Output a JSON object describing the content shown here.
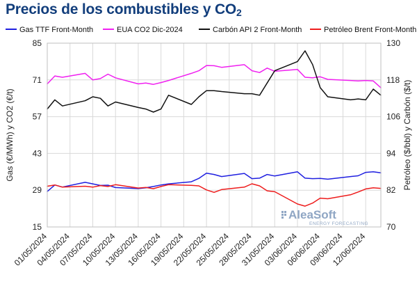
{
  "title": {
    "main": "Precios de los combustibles y CO",
    "sub": "2"
  },
  "watermark": {
    "brand": "AleaSoft",
    "tagline": "ENERGY FORECASTING"
  },
  "chart_data": {
    "type": "line",
    "grid": true,
    "legend_position": "top",
    "ylabel_left": "Gas (€/MWh) y CO2 (€/t)",
    "ylabel_right": "Petróleo ($/bbl) y Carbón ($/t)",
    "ylim_left": [
      15,
      85
    ],
    "yticks_left": [
      15,
      29,
      43,
      57,
      71,
      85
    ],
    "ylim_right": [
      70,
      130
    ],
    "yticks_right": [
      70,
      82,
      94,
      106,
      118,
      130
    ],
    "x": [
      "01/05/2024",
      "02/05/2024",
      "03/05/2024",
      "06/05/2024",
      "07/05/2024",
      "08/05/2024",
      "09/05/2024",
      "10/05/2024",
      "13/05/2024",
      "14/05/2024",
      "15/05/2024",
      "16/05/2024",
      "17/05/2024",
      "20/05/2024",
      "21/05/2024",
      "22/05/2024",
      "23/05/2024",
      "24/05/2024",
      "27/05/2024",
      "28/05/2024",
      "29/05/2024",
      "30/05/2024",
      "31/05/2024",
      "03/06/2024",
      "04/06/2024",
      "05/06/2024",
      "06/06/2024",
      "07/06/2024",
      "10/06/2024",
      "11/06/2024",
      "12/06/2024",
      "13/06/2024",
      "14/06/2024"
    ],
    "xtick_labels": [
      "01/05/2024",
      "04/05/2024",
      "07/05/2024",
      "10/05/2024",
      "13/05/2024",
      "16/05/2024",
      "19/05/2024",
      "22/05/2024",
      "25/05/2024",
      "28/05/2024",
      "31/05/2024",
      "03/06/2024",
      "06/06/2024",
      "09/06/2024",
      "12/06/2024"
    ],
    "series": [
      {
        "name": "Gas TTF Front-Month",
        "axis": "left",
        "color": "#1f1fe0",
        "values": [
          28.5,
          31.0,
          30.2,
          32.0,
          31.4,
          30.8,
          30.9,
          30.0,
          29.6,
          29.9,
          30.4,
          31.0,
          31.4,
          32.2,
          33.5,
          35.5,
          35.0,
          34.2,
          35.4,
          33.4,
          33.6,
          35.0,
          34.4,
          36.0,
          33.6,
          33.4,
          33.5,
          33.2,
          34.2,
          34.5,
          35.8,
          36.0,
          35.6
        ]
      },
      {
        "name": "EUA CO2 Dic-2024",
        "axis": "left",
        "color": "#f020f0",
        "values": [
          69.5,
          72.5,
          72.0,
          73.5,
          71.0,
          71.5,
          73.2,
          71.8,
          69.5,
          69.8,
          69.3,
          70.0,
          70.8,
          73.5,
          74.5,
          76.5,
          76.4,
          75.8,
          76.8,
          74.5,
          73.8,
          75.5,
          74.3,
          75.0,
          72.0,
          71.8,
          72.2,
          71.2,
          70.8,
          70.6,
          70.8,
          70.6,
          68.0
        ]
      },
      {
        "name": "Carbón API 2 Front-Month",
        "axis": "right",
        "color": "#111111",
        "values": [
          108.5,
          111.5,
          109.5,
          111.2,
          112.5,
          112.0,
          109.5,
          110.8,
          109.0,
          108.5,
          107.5,
          108.5,
          113.0,
          110.0,
          112.5,
          114.5,
          114.5,
          114.2,
          113.5,
          113.5,
          113.0,
          117.0,
          121.0,
          124.0,
          127.5,
          123.0,
          115.5,
          112.5,
          111.5,
          111.8,
          111.5,
          115.0,
          113.0
        ]
      },
      {
        "name": "Petróleo Brent Front-Month",
        "axis": "right",
        "color": "#ee1c1c",
        "values": [
          83.3,
          83.7,
          83.0,
          83.3,
          83.0,
          83.5,
          83.2,
          83.8,
          82.7,
          82.9,
          82.5,
          83.2,
          83.8,
          83.6,
          83.4,
          82.1,
          81.3,
          82.2,
          83.0,
          84.1,
          83.4,
          81.8,
          81.5,
          77.5,
          76.8,
          77.8,
          79.4,
          79.2,
          80.5,
          81.4,
          82.4,
          82.8,
          82.6
        ]
      }
    ]
  }
}
